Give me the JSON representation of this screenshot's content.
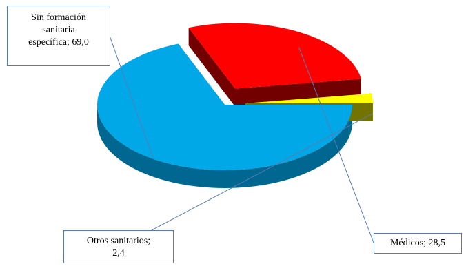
{
  "chart_data": {
    "type": "pie",
    "style": "3d-exploded",
    "slices": [
      {
        "label": "Sin formación sanitaria específica",
        "value": 69.0,
        "label_text": "Sin formación\nsanitaria\nespecífica; 69,0",
        "color": "#00a8e8"
      },
      {
        "label": "Médicos",
        "value": 28.5,
        "label_text": "Médicos; 28,5",
        "color": "#ff0000"
      },
      {
        "label": "Otros sanitarios",
        "value": 2.4,
        "label_text": "Otros sanitarios;\n2,4",
        "color": "#ffff00"
      }
    ],
    "legend": "none"
  }
}
